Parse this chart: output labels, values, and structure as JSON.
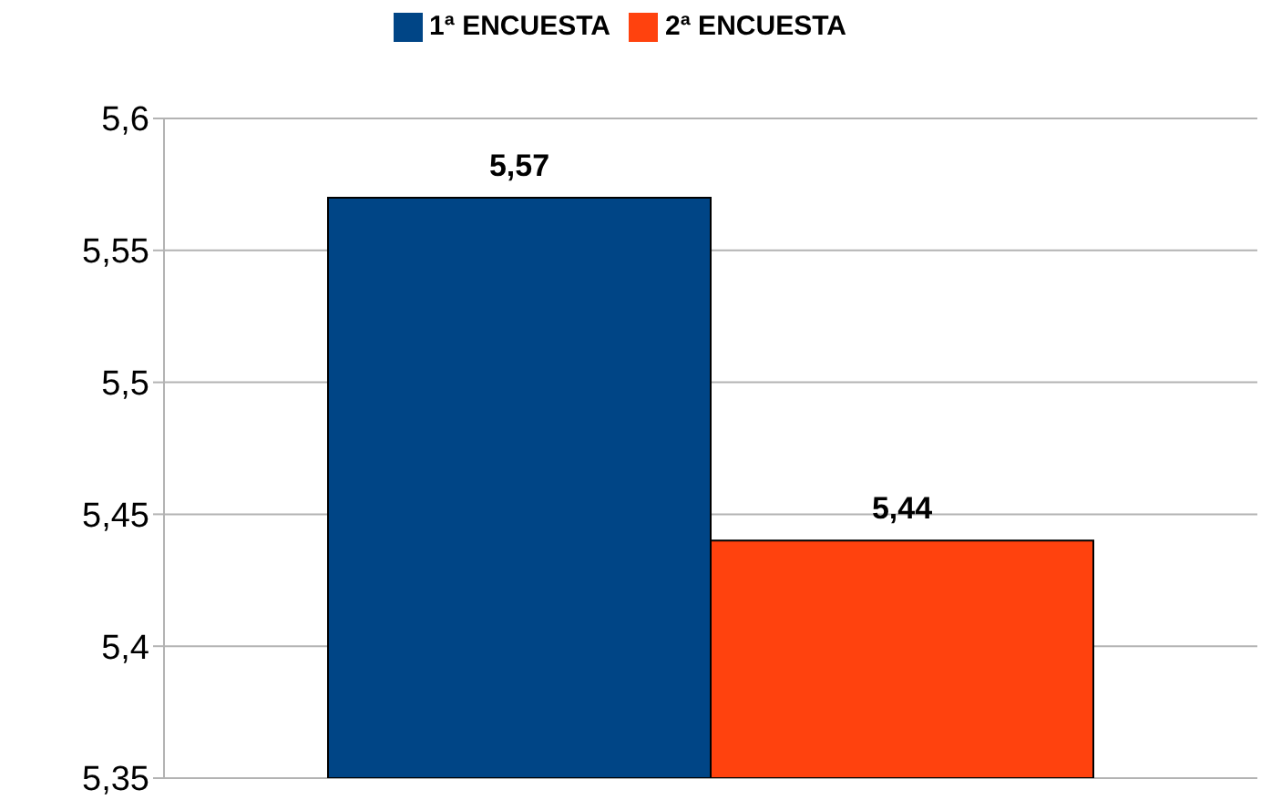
{
  "chart_data": {
    "type": "bar",
    "categories": [
      null
    ],
    "series": [
      {
        "name": "1ª ENCUESTA",
        "color": "#004586",
        "values": [
          5.57
        ],
        "value_labels": [
          "5,57"
        ]
      },
      {
        "name": "2ª ENCUESTA",
        "color": "#ff420e",
        "values": [
          5.44
        ],
        "value_labels": [
          "5,44"
        ]
      }
    ],
    "ylim": [
      5.35,
      5.6
    ],
    "yticks": [
      {
        "value": 5.35,
        "label": "5,35"
      },
      {
        "value": 5.4,
        "label": "5,4"
      },
      {
        "value": 5.45,
        "label": "5,45"
      },
      {
        "value": 5.5,
        "label": "5,5"
      },
      {
        "value": 5.55,
        "label": "5,55"
      },
      {
        "value": 5.6,
        "label": "5,6"
      }
    ],
    "grid": "y",
    "legend": "top"
  }
}
